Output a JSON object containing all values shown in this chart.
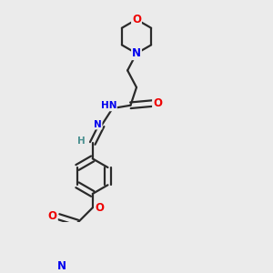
{
  "bg_color": "#ebebeb",
  "bond_color": "#2a2a2a",
  "bond_width": 1.6,
  "atom_colors": {
    "O": "#ee0000",
    "N": "#0000ee",
    "C": "#2a2a2a",
    "H": "#4a9090"
  },
  "font_size_atom": 8.5,
  "font_size_small": 7.5
}
